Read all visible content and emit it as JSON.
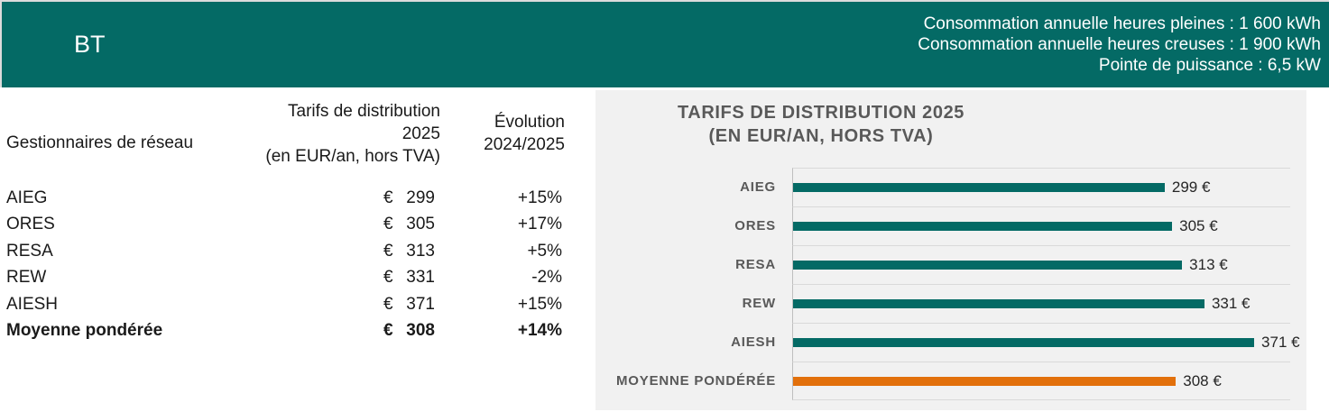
{
  "header": {
    "tag": "BT",
    "info_lines": [
      "Consommation annuelle heures pleines : 1 600 kWh",
      "Consommation annuelle heures creuses : 1 900 kWh",
      "Pointe de puissance : 6,5 kW"
    ]
  },
  "table": {
    "col1_header": "Gestionnaires de réseau",
    "col2_header_lines": [
      "Tarifs de distribution",
      "2025",
      "(en EUR/an, hors TVA)"
    ],
    "col3_header_lines": [
      "Évolution",
      "2024/2025"
    ],
    "rows": [
      {
        "name": "AIEG",
        "currency": "€",
        "tariff": "299",
        "evolution": "+15%",
        "bold": false
      },
      {
        "name": "ORES",
        "currency": "€",
        "tariff": "305",
        "evolution": "+17%",
        "bold": false
      },
      {
        "name": "RESA",
        "currency": "€",
        "tariff": "313",
        "evolution": "+5%",
        "bold": false
      },
      {
        "name": "REW",
        "currency": "€",
        "tariff": "331",
        "evolution": "-2%",
        "bold": false
      },
      {
        "name": "AIESH",
        "currency": "€",
        "tariff": "371",
        "evolution": "+15%",
        "bold": false
      },
      {
        "name": "Moyenne pondérée",
        "currency": "€",
        "tariff": "308",
        "evolution": "+14%",
        "bold": true
      }
    ]
  },
  "chart_data": {
    "type": "bar",
    "orientation": "horizontal",
    "title": "TARIFS DE DISTRIBUTION 2025 (EN EUR/AN, HORS TVA)",
    "title_lines": [
      "TARIFS DE DISTRIBUTION 2025",
      "(EN EUR/AN, HORS TVA)"
    ],
    "categories": [
      "AIEG",
      "ORES",
      "RESA",
      "REW",
      "AIESH",
      "MOYENNE PONDÉRÉE"
    ],
    "values": [
      299,
      305,
      313,
      331,
      371,
      308
    ],
    "value_labels": [
      "299 €",
      "305 €",
      "313 €",
      "331 €",
      "371 €",
      "308 €"
    ],
    "xlim": [
      0,
      400
    ],
    "grid": "row-separators",
    "legend": "none",
    "highlight_index": 5
  },
  "colors": {
    "teal": "#046A65",
    "orange": "#E2700B",
    "panel_bg": "#F1F1F1",
    "separator": "#D9D9D9",
    "axis_line": "#BFBFBF",
    "label_gray": "#595959"
  }
}
